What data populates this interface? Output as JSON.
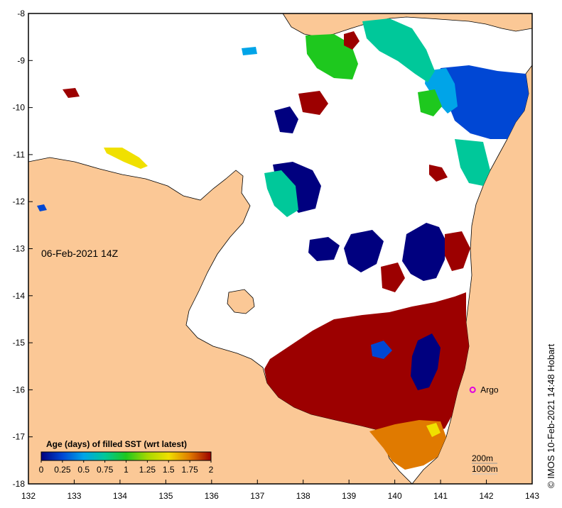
{
  "map": {
    "date_label": "06-Feb-2021 14Z",
    "lon_ticks": [
      "132",
      "133",
      "134",
      "135",
      "136",
      "137",
      "138",
      "139",
      "140",
      "141",
      "142",
      "143"
    ],
    "lat_ticks": [
      "-8",
      "-9",
      "-10",
      "-11",
      "-12",
      "-13",
      "-14",
      "-15",
      "-16",
      "-17",
      "-18"
    ],
    "colors": {
      "land": "#fbc896",
      "frame": "#000000",
      "age_0": "#00007f",
      "age_025": "#0047d4",
      "age_05": "#00a4e8",
      "age_075": "#00c89a",
      "age_1": "#1ec81e",
      "age_125": "#a6d800",
      "age_15": "#f0e000",
      "age_175": "#e07a00",
      "age_2": "#9c0000",
      "argo": "#e000e0"
    },
    "argo": {
      "label": "Argo",
      "lon": 141.7,
      "lat": -16.0
    },
    "depth_contours": [
      "200m",
      "1000m"
    ],
    "colorbar": {
      "title": "Age (days) of filled SST (wrt latest)",
      "ticks": [
        "0",
        "0.25",
        "0.5",
        "0.75",
        "1",
        "1.25",
        "1.5",
        "1.75",
        "2"
      ],
      "min": 0,
      "max": 2
    },
    "credit": "© IMOS 10-Feb-2021 14:48 Hobart"
  }
}
